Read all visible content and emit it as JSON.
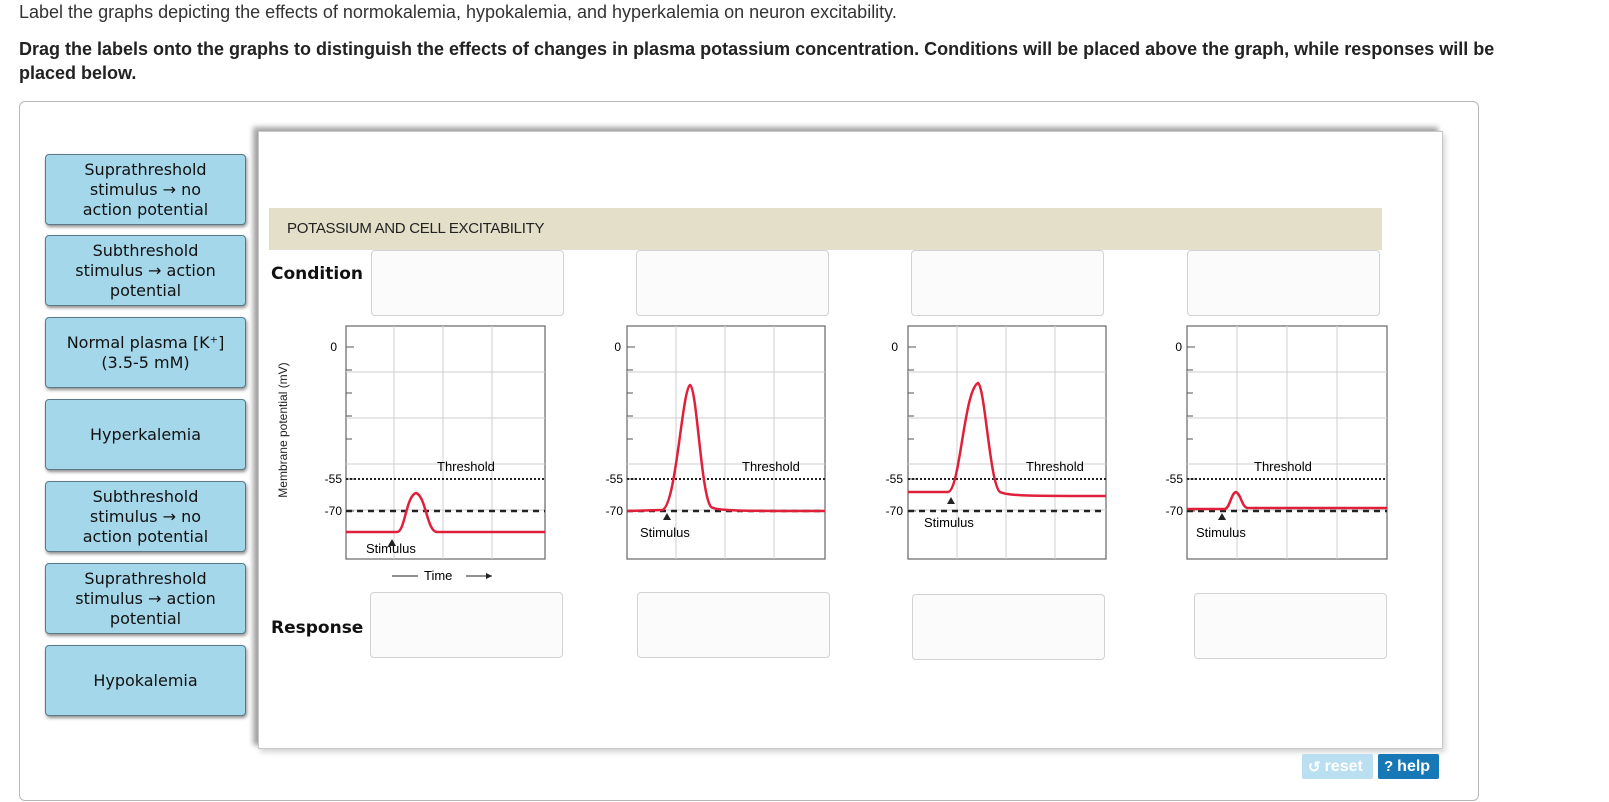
{
  "prompt": "Label the graphs depicting the effects of normokalemia, hypokalemia, and hyperkalemia on neuron excitability.",
  "instructions_line1": "Drag the labels onto the graphs to distinguish the effects of changes in plasma potassium concentration. Conditions will be placed above the graph, while responses will be",
  "instructions_line2": "placed below.",
  "labels": [
    {
      "line1": "Suprathreshold",
      "line2": "stimulus → no",
      "line3": "action potential"
    },
    {
      "line1": "Subthreshold",
      "line2": "stimulus → action",
      "line3": "potential"
    },
    {
      "line1": "Normal plasma [K⁺]",
      "line2": "(3.5-5 mM)",
      "line3": ""
    },
    {
      "line1": "Hyperkalemia",
      "line2": "",
      "line3": ""
    },
    {
      "line1": "Subthreshold",
      "line2": "stimulus → no",
      "line3": "action potential"
    },
    {
      "line1": "Suprathreshold",
      "line2": "stimulus → action",
      "line3": "potential"
    },
    {
      "line1": "Hypokalemia",
      "line2": "",
      "line3": ""
    }
  ],
  "figure": {
    "banner": "POTASSIUM AND CELL EXCITABILITY",
    "condition_label": "Condition",
    "response_label": "Response",
    "y_axis_label": "Membrane potential (mV)",
    "x_axis_label": "Time",
    "threshold_label": "Threshold",
    "stimulus_label": "Stimulus",
    "tick_0": "0",
    "tick_55": "-55",
    "tick_70": "-70"
  },
  "buttons": {
    "reset": "reset",
    "help": "help"
  },
  "colors": {
    "label_bg": "#a4d7ea",
    "trace": "#e0203a",
    "banner": "#e3dfc8",
    "help_bg": "#1778b8"
  }
}
